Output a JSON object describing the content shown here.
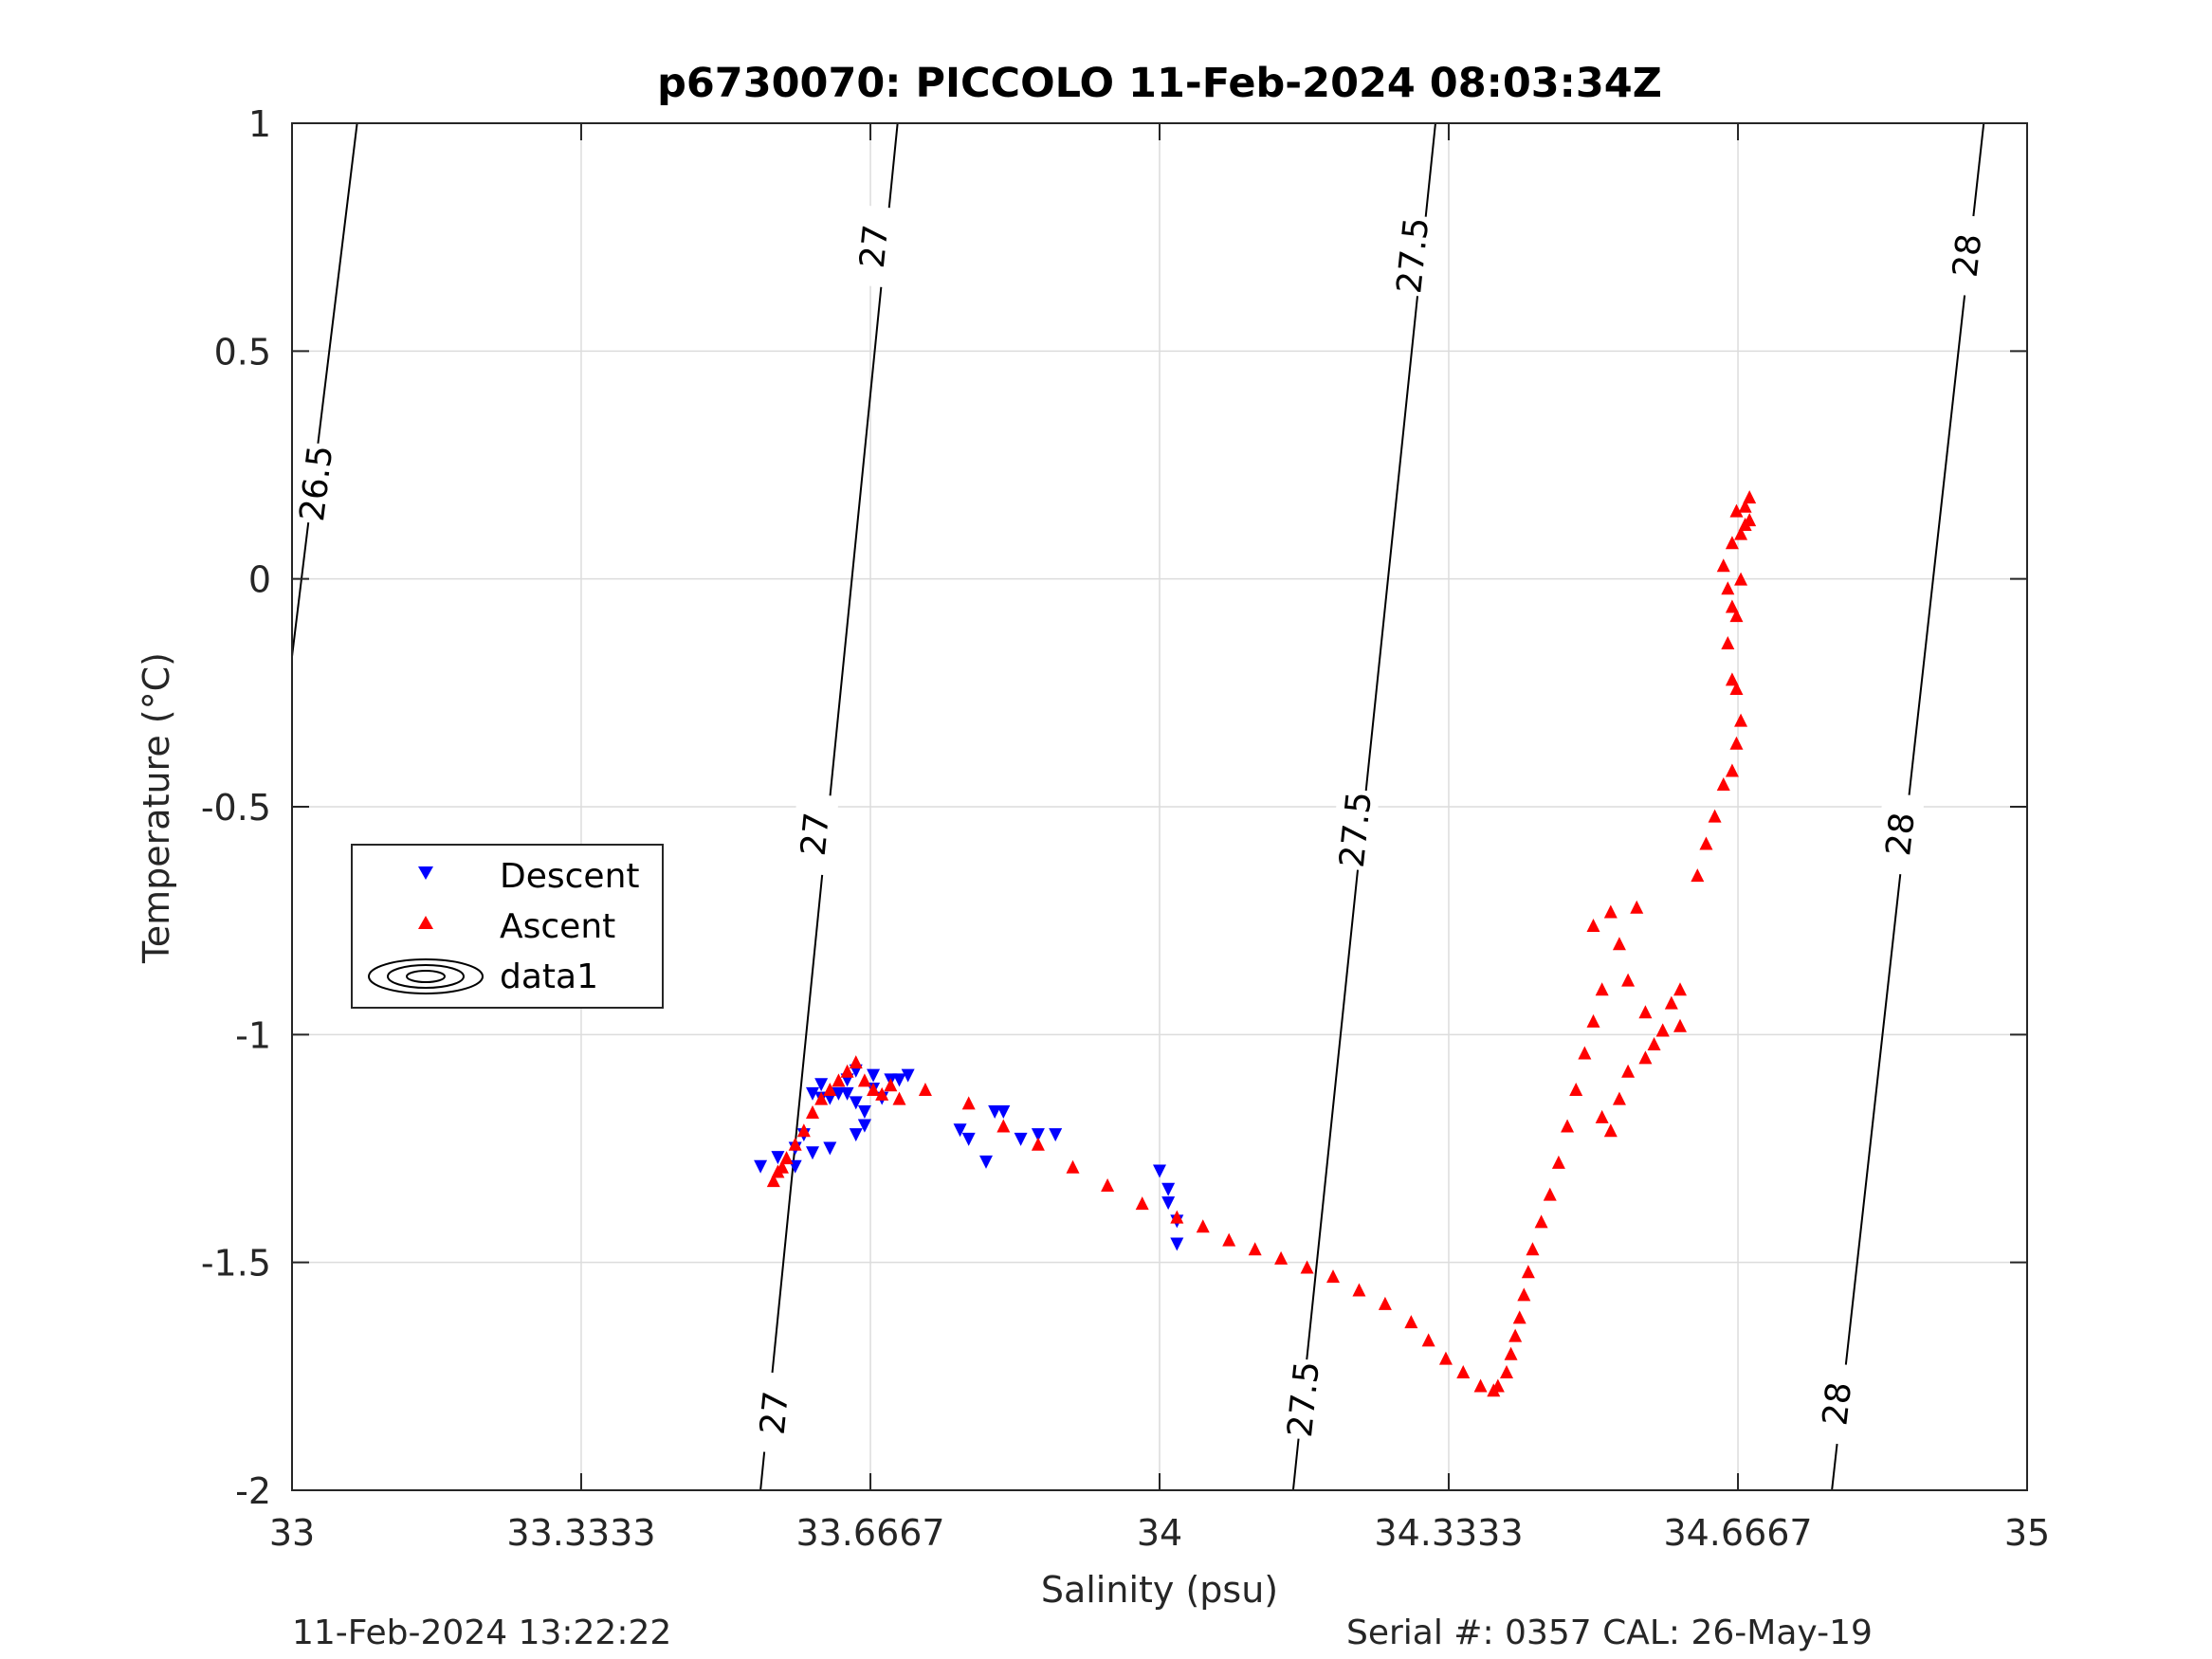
{
  "chart_data": {
    "type": "scatter",
    "title": "p6730070: PICCOLO 11-Feb-2024 08:03:34Z",
    "xlabel": "Salinity (psu)",
    "ylabel": "Temperature (°C)",
    "xlim": [
      33,
      35
    ],
    "ylim": [
      -2,
      1
    ],
    "xticks": [
      33,
      33.3333,
      33.6667,
      34,
      34.3333,
      34.6667,
      35
    ],
    "xtick_labels": [
      "33",
      "33.3333",
      "33.6667",
      "34",
      "34.3333",
      "34.6667",
      "35"
    ],
    "yticks": [
      1,
      0.5,
      0,
      -0.5,
      -1,
      -1.5,
      -2
    ],
    "ytick_labels": [
      "1",
      "0.5",
      "0",
      "-0.5",
      "-1",
      "-1.5",
      "-2"
    ],
    "grid": true,
    "legend_position": "left",
    "legend": [
      {
        "label": "Descent",
        "marker": "triangle-down",
        "color": "#0000ff"
      },
      {
        "label": "Ascent",
        "marker": "triangle-up",
        "color": "#ff0000"
      },
      {
        "label": "data1",
        "marker": "contour-ellipses",
        "color": "#000000"
      }
    ],
    "contours": [
      {
        "level": "26.5",
        "points": [
          [
            33,
            -0.17
          ],
          [
            33.075,
            1.0
          ]
        ],
        "labels": [
          {
            "x": 33.027,
            "y": 0.21
          }
        ]
      },
      {
        "level": "27",
        "points": [
          [
            33.54,
            -2.0
          ],
          [
            33.698,
            1.0
          ]
        ],
        "labels": [
          {
            "x": 33.555,
            "y": -1.83
          },
          {
            "x": 33.602,
            "y": -0.56
          },
          {
            "x": 33.67,
            "y": 0.73
          }
        ]
      },
      {
        "level": "27.5",
        "points": [
          [
            34.154,
            -2.0
          ],
          [
            34.318,
            1.0
          ]
        ],
        "labels": [
          {
            "x": 34.165,
            "y": -1.8
          },
          {
            "x": 34.225,
            "y": -0.55
          },
          {
            "x": 34.291,
            "y": 0.71
          }
        ]
      },
      {
        "level": "28",
        "points": [
          [
            34.775,
            -2.0
          ],
          [
            34.95,
            1.0
          ]
        ],
        "labels": [
          {
            "x": 34.78,
            "y": -1.81
          },
          {
            "x": 34.853,
            "y": -0.56
          },
          {
            "x": 34.93,
            "y": 0.71
          }
        ]
      }
    ],
    "series": [
      {
        "name": "Descent",
        "marker": "triangle-down",
        "color": "#0000ff",
        "x": [
          33.54,
          33.56,
          33.58,
          33.59,
          33.6,
          33.61,
          33.61,
          33.62,
          33.63,
          33.64,
          33.64,
          33.65,
          33.65,
          33.66,
          33.66,
          33.67,
          33.67,
          33.68,
          33.69,
          33.7,
          33.71,
          33.65,
          33.66,
          33.6,
          33.62,
          33.58,
          33.77,
          33.78,
          33.8,
          33.81,
          33.82,
          33.84,
          33.86,
          33.88,
          34.0,
          34.01,
          34.01,
          34.02,
          34.02
        ],
        "y": [
          -1.29,
          -1.27,
          -1.25,
          -1.22,
          -1.13,
          -1.11,
          -1.14,
          -1.14,
          -1.13,
          -1.13,
          -1.1,
          -1.08,
          -1.15,
          -1.2,
          -1.17,
          -1.12,
          -1.09,
          -1.14,
          -1.1,
          -1.1,
          -1.09,
          -1.22,
          -1.2,
          -1.26,
          -1.25,
          -1.29,
          -1.21,
          -1.23,
          -1.28,
          -1.17,
          -1.17,
          -1.23,
          -1.22,
          -1.22,
          -1.3,
          -1.34,
          -1.37,
          -1.41,
          -1.46
        ]
      },
      {
        "name": "Ascent",
        "marker": "triangle-up",
        "color": "#ff0000",
        "x": [
          33.555,
          33.56,
          33.565,
          33.57,
          33.58,
          33.59,
          33.6,
          33.61,
          33.62,
          33.63,
          33.64,
          33.65,
          33.66,
          33.67,
          33.68,
          33.69,
          33.7,
          33.73,
          33.78,
          33.82,
          33.86,
          33.9,
          33.94,
          33.98,
          34.02,
          34.05,
          34.08,
          34.11,
          34.14,
          34.17,
          34.2,
          34.23,
          34.26,
          34.29,
          34.31,
          34.33,
          34.35,
          34.37,
          34.385,
          34.39,
          34.4,
          34.405,
          34.41,
          34.415,
          34.42,
          34.425,
          34.43,
          34.44,
          34.45,
          34.46,
          34.47,
          34.48,
          34.49,
          34.5,
          34.51,
          34.5,
          34.52,
          34.53,
          34.54,
          34.55,
          34.56,
          34.57,
          34.58,
          34.59,
          34.6,
          34.51,
          34.52,
          34.53,
          34.54,
          34.56,
          34.58,
          34.6,
          34.62,
          34.63,
          34.64,
          34.65,
          34.66,
          34.665,
          34.67,
          34.665,
          34.66,
          34.655,
          34.66,
          34.655,
          34.65,
          34.66,
          34.67,
          34.68,
          34.68,
          34.675,
          34.665,
          34.665,
          34.67,
          34.675
        ],
        "y": [
          -1.32,
          -1.3,
          -1.29,
          -1.27,
          -1.24,
          -1.21,
          -1.17,
          -1.14,
          -1.12,
          -1.1,
          -1.08,
          -1.06,
          -1.1,
          -1.12,
          -1.13,
          -1.11,
          -1.14,
          -1.12,
          -1.15,
          -1.2,
          -1.24,
          -1.29,
          -1.33,
          -1.37,
          -1.4,
          -1.42,
          -1.45,
          -1.47,
          -1.49,
          -1.51,
          -1.53,
          -1.56,
          -1.59,
          -1.63,
          -1.67,
          -1.71,
          -1.74,
          -1.77,
          -1.78,
          -1.77,
          -1.74,
          -1.7,
          -1.66,
          -1.62,
          -1.57,
          -1.52,
          -1.47,
          -1.41,
          -1.35,
          -1.28,
          -1.2,
          -1.12,
          -1.04,
          -0.97,
          -0.9,
          -0.76,
          -0.73,
          -0.8,
          -0.88,
          -0.72,
          -0.95,
          -1.02,
          -0.99,
          -0.93,
          -0.9,
          -1.18,
          -1.21,
          -1.14,
          -1.08,
          -1.05,
          -0.99,
          -0.98,
          -0.65,
          -0.58,
          -0.52,
          -0.45,
          -0.42,
          -0.36,
          -0.31,
          -0.24,
          -0.22,
          -0.14,
          -0.06,
          -0.02,
          0.03,
          0.08,
          0.1,
          0.13,
          0.18,
          0.16,
          0.15,
          -0.08,
          0.0,
          0.12
        ]
      }
    ]
  },
  "footer": {
    "timestamp": "11-Feb-2024 13:22:22",
    "serial": "Serial #: 0357  CAL: 26-May-19"
  }
}
